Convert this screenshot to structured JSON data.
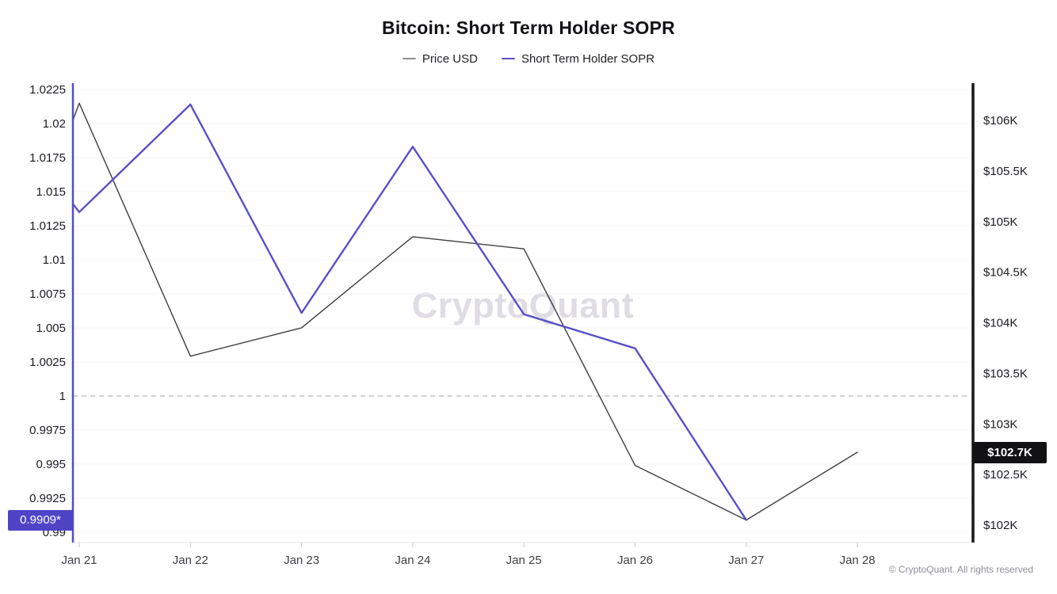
{
  "header": {
    "title": "Bitcoin: Short Term Holder SOPR"
  },
  "legend": [
    {
      "label": "Price USD",
      "color": "#8e8e96"
    },
    {
      "label": "Short Term Holder SOPR",
      "color": "#5a50c4"
    }
  ],
  "watermark": "CryptoQuant",
  "footer": {
    "copyright": "© CryptoQuant. All rights reserved"
  },
  "highlights": {
    "left": {
      "label": "0.9909*",
      "value": 0.9909,
      "bg": "#4f44c6"
    },
    "right": {
      "label": "$102.7K",
      "value": 102.72,
      "bg": "#121214"
    }
  },
  "axes": {
    "left": {
      "ticks": [
        {
          "label": "1.0225",
          "v": 1.0225
        },
        {
          "label": "1.02",
          "v": 1.02
        },
        {
          "label": "1.0175",
          "v": 1.0175
        },
        {
          "label": "1.015",
          "v": 1.015
        },
        {
          "label": "1.0125",
          "v": 1.0125
        },
        {
          "label": "1.01",
          "v": 1.01
        },
        {
          "label": "1.0075",
          "v": 1.0075
        },
        {
          "label": "1.005",
          "v": 1.005
        },
        {
          "label": "1.0025",
          "v": 1.0025
        },
        {
          "label": "1",
          "v": 1.0
        },
        {
          "label": "0.9975",
          "v": 0.9975
        },
        {
          "label": "0.995",
          "v": 0.995
        },
        {
          "label": "0.9925",
          "v": 0.9925
        },
        {
          "label": "0.99",
          "v": 0.99
        }
      ]
    },
    "right": {
      "ticks": [
        {
          "label": "$106K",
          "v": 106
        },
        {
          "label": "$105.5K",
          "v": 105.5
        },
        {
          "label": "$105K",
          "v": 105
        },
        {
          "label": "$104.5K",
          "v": 104.5
        },
        {
          "label": "$104K",
          "v": 104
        },
        {
          "label": "$103.5K",
          "v": 103.5
        },
        {
          "label": "$103K",
          "v": 103
        },
        {
          "label": "$102.5K",
          "v": 102.5
        },
        {
          "label": "$102K",
          "v": 102
        }
      ]
    },
    "x": {
      "labels": [
        "Jan 21",
        "Jan 22",
        "Jan 23",
        "Jan 24",
        "Jan 25",
        "Jan 26",
        "Jan 27",
        "Jan 28"
      ]
    }
  },
  "chart_data": {
    "type": "line",
    "title": "Bitcoin: Short Term Holder SOPR",
    "x_categories": [
      "Jan 21",
      "Jan 22",
      "Jan 23",
      "Jan 24",
      "Jan 25",
      "Jan 26",
      "Jan 27",
      "Jan 28"
    ],
    "series": [
      {
        "name": "Price USD",
        "axis": "right",
        "unit": "USD thousands",
        "color": "#3d3d42",
        "width": 1.4,
        "points": [
          [
            -0.057,
            106.0
          ],
          [
            0,
            106.17
          ],
          [
            1,
            103.67
          ],
          [
            2,
            103.95
          ],
          [
            3,
            104.85
          ],
          [
            4,
            104.73
          ],
          [
            5,
            102.59
          ],
          [
            6,
            102.05
          ],
          [
            7,
            102.72
          ]
        ]
      },
      {
        "name": "Short Term Holder SOPR",
        "axis": "left",
        "unit": "ratio",
        "color": "#5a50c4",
        "width": 2.4,
        "points": [
          [
            -0.057,
            1.0141
          ],
          [
            0,
            1.0135
          ],
          [
            1,
            1.0214
          ],
          [
            2,
            1.0061
          ],
          [
            3,
            1.0183
          ],
          [
            4,
            1.006
          ],
          [
            5,
            1.0035
          ],
          [
            6,
            0.9909
          ]
        ]
      }
    ],
    "left_axis_range": [
      0.99,
      1.0225
    ],
    "right_axis_range": [
      102,
      106
    ],
    "reference_line": {
      "axis": "left",
      "value": 1.0,
      "style": "dashed"
    },
    "legend_position": "top",
    "grid": "horizontal"
  },
  "colors": {
    "sopr_line": "#5a50c4",
    "price_line": "#3d3d42",
    "left_axis": "#564cc8",
    "right_axis": "#17171a",
    "gridline": "#f6f4f7",
    "dashed_line": "#b6b6bc",
    "tick_text": "#1b1b22",
    "x_label_text": "#3f3f46",
    "watermark": "#dfdde3",
    "copyright": "#8e8e96"
  }
}
